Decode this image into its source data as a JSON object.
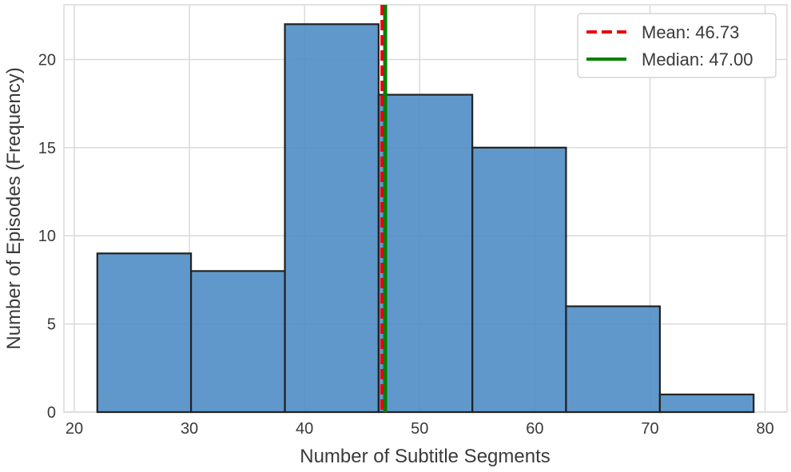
{
  "chart_data": {
    "type": "histogram",
    "title": "",
    "xlabel": "Number of Subtitle Segments",
    "ylabel": "Number of Episodes (Frequency)",
    "xlim": [
      19.1,
      81.9
    ],
    "ylim": [
      0,
      23.1
    ],
    "xticks": [
      20,
      30,
      40,
      50,
      60,
      70,
      80
    ],
    "yticks": [
      0,
      5,
      10,
      15,
      20
    ],
    "bin_edges": [
      22,
      30.14,
      38.29,
      46.43,
      54.57,
      62.71,
      70.86,
      79
    ],
    "counts": [
      9,
      8,
      22,
      18,
      15,
      6,
      1
    ],
    "bar_color": "#4a8ac4",
    "bar_edge_color": "#222222",
    "grid": true,
    "mean": {
      "value": 46.73,
      "label": "Mean: 46.73",
      "color": "#e8000b",
      "style": "dashed"
    },
    "median": {
      "value": 47.0,
      "label": "Median: 47.00",
      "color": "#008000",
      "style": "solid"
    },
    "legend_position": "top-right"
  }
}
